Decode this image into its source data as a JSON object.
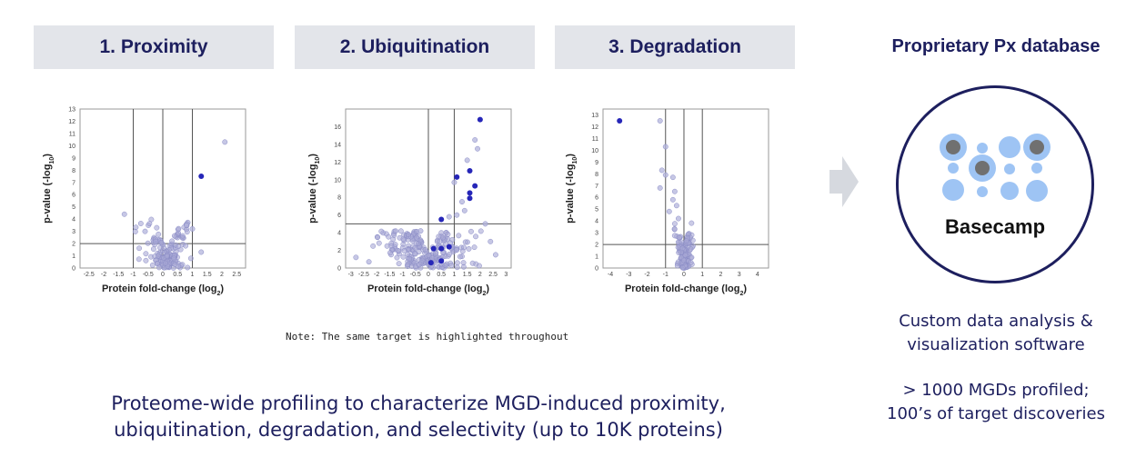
{
  "steps": [
    {
      "label": "1. Proximity"
    },
    {
      "label": "2. Ubiquitination"
    },
    {
      "label": "3. Degradation"
    }
  ],
  "database": {
    "title": "Proprietary Px database",
    "logo_text": "Basecamp",
    "description": [
      "Custom data analysis &",
      "visualization software"
    ],
    "stats": [
      "> 1000 MGDs profiled;",
      "100’s of target discoveries"
    ]
  },
  "note": "Note: The same target is highlighted throughout",
  "summary": [
    "Proteome-wide profiling to characterize MGD-induced proximity,",
    "ubiquitination, degradation, and selectivity (up to 10K proteins)"
  ],
  "colors": {
    "header_bg": "#e3e5ea",
    "navy": "#1d1f5e",
    "point": "#a8a9d6",
    "highlight": "#2626b8",
    "logo_dot": "#9ec4f4",
    "logo_core": "#707070"
  },
  "icons": [
    "arrow-right-icon",
    "basecamp-logo-icon"
  ],
  "chart_data": [
    {
      "type": "scatter",
      "title": "1. Proximity",
      "xlabel": "Protein fold-change (log2)",
      "ylabel": "p-value (-log10)",
      "xlim": [
        -2.8,
        2.8
      ],
      "ylim": [
        0,
        13
      ],
      "xticks": [
        -2.5,
        -2,
        -1.5,
        -1,
        -0.5,
        0,
        0.5,
        1,
        1.5,
        2,
        2.5
      ],
      "yticks": [
        0,
        1,
        2,
        3,
        4,
        5,
        6,
        7,
        8,
        9,
        10,
        11,
        12,
        13
      ],
      "vlines": [
        -1,
        0,
        1
      ],
      "hline": 2,
      "highlight": [
        1.3,
        7.5
      ],
      "outliers": [
        [
          -1.3,
          4.4
        ],
        [
          2.1,
          10.3
        ],
        [
          1.3,
          1.3
        ],
        [
          0.8,
          3.5
        ],
        [
          -0.6,
          3.0
        ],
        [
          1.0,
          3.2
        ]
      ],
      "cluster": {
        "n": 170,
        "xmean": 0.15,
        "xsd": 0.38,
        "vmax": 4.0,
        "seed": 7
      }
    },
    {
      "type": "scatter",
      "title": "2. Ubiquitination",
      "xlabel": "Protein fold-change (log2)",
      "ylabel": "p-value (-log10)",
      "xlim": [
        -3.2,
        3.2
      ],
      "ylim": [
        0,
        18
      ],
      "xticks": [
        -3,
        -2.5,
        -2,
        -1.5,
        -1,
        -0.5,
        0,
        0.5,
        1,
        1.5,
        2,
        2.5,
        3
      ],
      "yticks": [
        0,
        2,
        4,
        6,
        8,
        10,
        12,
        14,
        16
      ],
      "vlines": [
        0,
        1
      ],
      "hline": 5,
      "highlight": [
        [
          2.0,
          16.8
        ],
        [
          1.6,
          11.0
        ],
        [
          1.8,
          9.3
        ],
        [
          1.6,
          8.5
        ],
        [
          1.6,
          7.9
        ],
        [
          1.1,
          10.3
        ],
        [
          0.5,
          5.5
        ],
        [
          0.2,
          2.2
        ],
        [
          0.5,
          2.2
        ],
        [
          0.8,
          2.4
        ],
        [
          0.1,
          0.6
        ],
        [
          0.5,
          0.8
        ]
      ],
      "outliers": [
        [
          1.8,
          14.5
        ],
        [
          1.9,
          13.5
        ],
        [
          1.5,
          12.2
        ],
        [
          1.0,
          9.7
        ],
        [
          1.3,
          7.5
        ],
        [
          1.4,
          6.5
        ],
        [
          1.1,
          6.0
        ],
        [
          0.8,
          5.8
        ],
        [
          2.2,
          5.0
        ],
        [
          -2.8,
          1.2
        ],
        [
          -2.3,
          0.7
        ],
        [
          2.6,
          1.5
        ],
        [
          2.4,
          3.0
        ],
        [
          -0.3,
          4.2
        ]
      ],
      "cluster": {
        "n": 230,
        "xmean": 0.0,
        "xsd": 0.85,
        "vmax": 4.2,
        "seed": 11
      }
    },
    {
      "type": "scatter",
      "title": "3. Degradation",
      "xlabel": "Protein fold-change (log2)",
      "ylabel": "p-value (-log10)",
      "xlim": [
        -4.4,
        4.6
      ],
      "ylim": [
        0,
        13.5
      ],
      "xticks": [
        -4,
        -3,
        -2,
        -1,
        0,
        1,
        2,
        3,
        4
      ],
      "yticks": [
        0,
        1,
        2,
        3,
        4,
        5,
        6,
        7,
        8,
        9,
        10,
        11,
        12,
        13
      ],
      "vlines": [
        -1,
        0,
        1
      ],
      "hline": 2,
      "highlight": [
        -3.5,
        12.5
      ],
      "outliers": [
        [
          -1.3,
          12.5
        ],
        [
          -1.0,
          10.3
        ],
        [
          -1.2,
          8.3
        ],
        [
          -1.0,
          7.9
        ],
        [
          -0.6,
          7.7
        ],
        [
          -1.3,
          6.8
        ],
        [
          -0.5,
          6.5
        ],
        [
          -0.6,
          5.8
        ],
        [
          -0.4,
          5.3
        ],
        [
          -0.8,
          4.8
        ],
        [
          -0.3,
          4.2
        ]
      ],
      "cluster": {
        "n": 160,
        "xmean": 0.0,
        "xsd": 0.2,
        "vmax": 4.5,
        "seed": 23
      }
    }
  ]
}
